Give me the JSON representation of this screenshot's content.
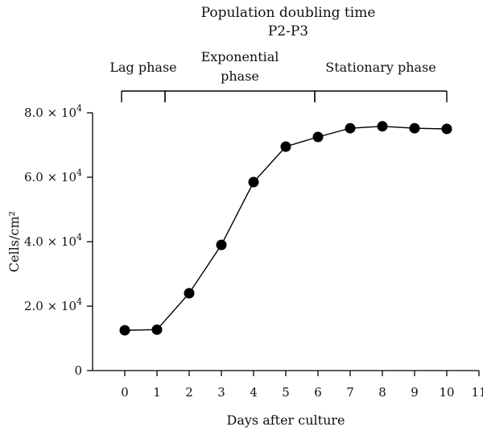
{
  "chart_data": {
    "type": "line",
    "title": "Population doubling time",
    "subtitle": "P2-P3",
    "xlabel": "Days after culture",
    "ylabel": "Cells/cm²",
    "x": [
      0,
      1,
      2,
      3,
      4,
      5,
      6,
      7,
      8,
      9,
      10
    ],
    "series": [
      {
        "values": [
          12500,
          12700,
          24000,
          39000,
          58500,
          69500,
          72500,
          75200,
          75800,
          75200,
          75000
        ]
      }
    ],
    "xlim": [
      -1,
      11
    ],
    "ylim": [
      0,
      80000
    ],
    "x_ticks": [
      0,
      1,
      2,
      3,
      4,
      5,
      6,
      7,
      8,
      9,
      10,
      11
    ],
    "y_ticks": [
      0,
      20000,
      40000,
      60000,
      80000
    ],
    "y_tick_labels": [
      {
        "mantissa": "0",
        "sup": ""
      },
      {
        "mantissa": "2.0 × 10",
        "sup": "4"
      },
      {
        "mantissa": "4.0 × 10",
        "sup": "4"
      },
      {
        "mantissa": "6.0 × 10",
        "sup": "4"
      },
      {
        "mantissa": "8.0 × 10",
        "sup": "4"
      }
    ],
    "phases": [
      {
        "label": [
          "Lag phase"
        ],
        "from": -0.1,
        "to": 1.25
      },
      {
        "label": [
          "Exponential",
          "phase"
        ],
        "from": 1.25,
        "to": 5.9
      },
      {
        "label": [
          "Stationary phase"
        ],
        "from": 5.9,
        "to": 10.0
      }
    ],
    "grid": false,
    "legend": "none",
    "colors": {
      "line": "#000000",
      "marker": "#000000"
    }
  }
}
